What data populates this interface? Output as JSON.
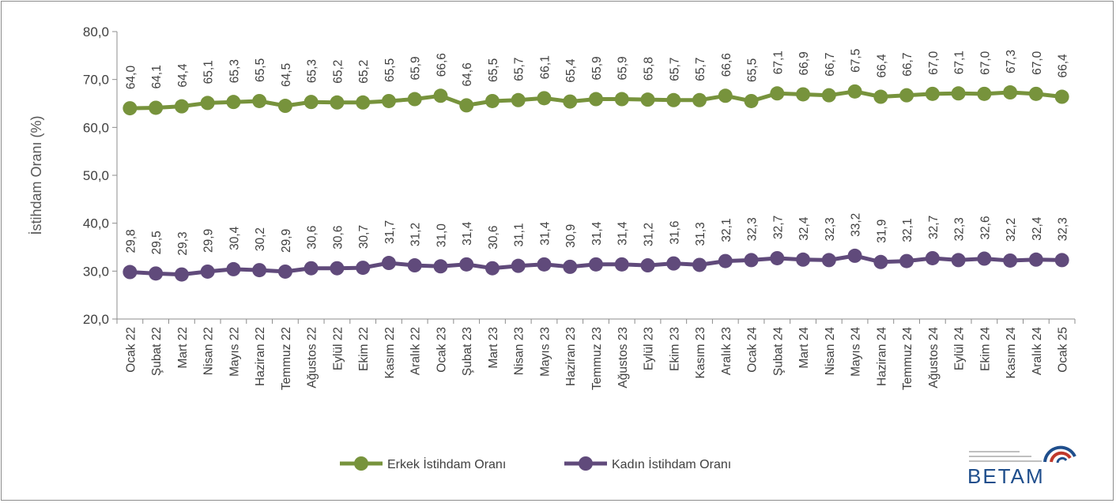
{
  "chart_data": {
    "type": "line",
    "title": "",
    "ylabel": "İstihdam Oranı (%)",
    "xlabel": "",
    "ylim": [
      20,
      80
    ],
    "yticks": [
      "20,0",
      "30,0",
      "40,0",
      "50,0",
      "60,0",
      "70,0",
      "80,0"
    ],
    "grid": false,
    "legend_position": "bottom",
    "categories": [
      "Ocak 22",
      "Şubat 22",
      "Mart 22",
      "Nisan 22",
      "Mayıs 22",
      "Haziran 22",
      "Temmuz 22",
      "Ağustos 22",
      "Eylül 22",
      "Ekim 22",
      "Kasım 22",
      "Aralık 22",
      "Ocak 23",
      "Şubat 23",
      "Mart 23",
      "Nisan 23",
      "Mayıs 23",
      "Haziran 23",
      "Temmuz 23",
      "Ağustos 23",
      "Eylül 23",
      "Ekim 23",
      "Kasım 23",
      "Aralık 23",
      "Ocak 24",
      "Şubat 24",
      "Mart 24",
      "Nisan 24",
      "Mayıs 24",
      "Haziran 24",
      "Temmuz 24",
      "Ağustos 24",
      "Eylül 24",
      "Ekim 24",
      "Kasım 24",
      "Aralık 24",
      "Ocak 25"
    ],
    "series": [
      {
        "name": "Erkek İstihdam Oranı",
        "color": "#77933c",
        "values": [
          64.0,
          64.1,
          64.4,
          65.1,
          65.3,
          65.5,
          64.5,
          65.3,
          65.2,
          65.2,
          65.5,
          65.9,
          66.6,
          64.6,
          65.5,
          65.7,
          66.1,
          65.4,
          65.9,
          65.9,
          65.8,
          65.7,
          65.7,
          66.6,
          65.5,
          67.1,
          66.9,
          66.7,
          67.5,
          66.4,
          66.7,
          67.0,
          67.1,
          67.0,
          67.3,
          67.0,
          66.4
        ],
        "labels": [
          "64,0",
          "64,1",
          "64,4",
          "65,1",
          "65,3",
          "65,5",
          "64,5",
          "65,3",
          "65,2",
          "65,2",
          "65,5",
          "65,9",
          "66,6",
          "64,6",
          "65,5",
          "65,7",
          "66,1",
          "65,4",
          "65,9",
          "65,9",
          "65,8",
          "65,7",
          "65,7",
          "66,6",
          "65,5",
          "67,1",
          "66,9",
          "66,7",
          "67,5",
          "66,4",
          "66,7",
          "67,0",
          "67,1",
          "67,0",
          "67,3",
          "67,0",
          "66,4"
        ]
      },
      {
        "name": "Kadın İstihdam Oranı",
        "color": "#604a7b",
        "values": [
          29.8,
          29.5,
          29.3,
          29.9,
          30.4,
          30.2,
          29.9,
          30.6,
          30.6,
          30.7,
          31.7,
          31.2,
          31.0,
          31.4,
          30.6,
          31.1,
          31.4,
          30.9,
          31.4,
          31.4,
          31.2,
          31.6,
          31.3,
          32.1,
          32.3,
          32.7,
          32.4,
          32.3,
          33.2,
          31.9,
          32.1,
          32.7,
          32.3,
          32.6,
          32.2,
          32.4,
          32.3
        ],
        "labels": [
          "29,8",
          "29,5",
          "29,3",
          "29,9",
          "30,4",
          "30,2",
          "29,9",
          "30,6",
          "30,6",
          "30,7",
          "31,7",
          "31,2",
          "31,0",
          "31,4",
          "30,6",
          "31,1",
          "31,4",
          "30,9",
          "31,4",
          "31,4",
          "31,2",
          "31,6",
          "31,3",
          "32,1",
          "32,3",
          "32,7",
          "32,4",
          "32,3",
          "33,2",
          "31,9",
          "32,1",
          "32,7",
          "32,3",
          "32,6",
          "32,2",
          "32,4",
          "32,3"
        ]
      }
    ]
  },
  "logo": {
    "text": "BETAM"
  }
}
